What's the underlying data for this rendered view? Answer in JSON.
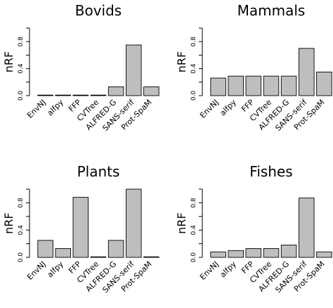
{
  "chart_data": [
    {
      "type": "bar",
      "title": "Bovids",
      "ylabel": "nRF",
      "ylim": [
        0,
        1
      ],
      "yticks": [
        "0.0",
        "0.4",
        "0.8"
      ],
      "categories": [
        "EnvNJ",
        "alfpy",
        "FFP",
        "CVTree",
        "ALFRED-G",
        "SANS-serif",
        "Prot-SpaM"
      ],
      "values": [
        0.0,
        0.0,
        0.0,
        0.0,
        0.13,
        0.75,
        0.13
      ],
      "bar_color": "#bebebe"
    },
    {
      "type": "bar",
      "title": "Mammals",
      "ylabel": "nRF",
      "ylim": [
        0,
        1
      ],
      "yticks": [
        "0.0",
        "0.4",
        "0.8"
      ],
      "categories": [
        "EnvNJ",
        "alfpy",
        "FFP",
        "CVTree",
        "ALFRED-G",
        "SANS-serif",
        "Prot-SpaM"
      ],
      "values": [
        0.26,
        0.29,
        0.29,
        0.29,
        0.29,
        0.7,
        0.35
      ],
      "bar_color": "#bebebe"
    },
    {
      "type": "bar",
      "title": "Plants",
      "ylabel": "nRF",
      "ylim": [
        0,
        1
      ],
      "yticks": [
        "0.0",
        "0.4",
        "0.8"
      ],
      "categories": [
        "EnvNJ",
        "alfpy",
        "FFP",
        "CVTree",
        "ALFRED-G",
        "SANS-serif",
        "Prot-SpaM"
      ],
      "values": [
        0.25,
        0.13,
        0.88,
        0.0,
        0.25,
        1.0,
        0.0
      ],
      "bar_color": "#bebebe"
    },
    {
      "type": "bar",
      "title": "Fishes",
      "ylabel": "nRF",
      "ylim": [
        0,
        1
      ],
      "yticks": [
        "0.0",
        "0.4",
        "0.8"
      ],
      "categories": [
        "EnvNJ",
        "alfpy",
        "FFP",
        "CVTree",
        "ALFRED-G",
        "SANS-serif",
        "Prot-SpaM"
      ],
      "values": [
        0.08,
        0.1,
        0.13,
        0.13,
        0.18,
        0.87,
        0.08
      ],
      "bar_color": "#bebebe"
    }
  ]
}
